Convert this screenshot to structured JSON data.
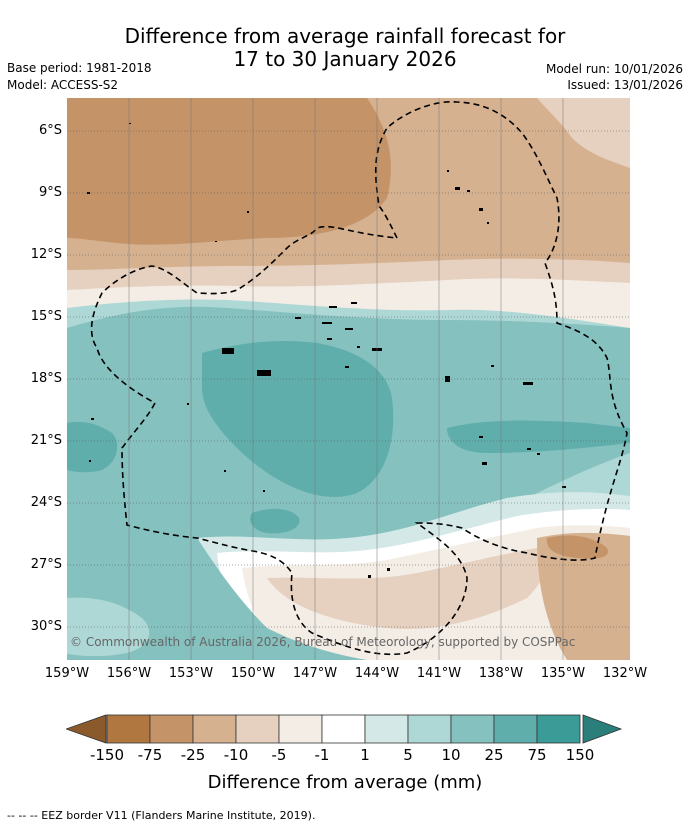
{
  "title": {
    "line1": "Difference from average rainfall forecast for",
    "line2": "17 to 30 January 2026"
  },
  "info": {
    "base_period": "Base period: 1981-2018",
    "model": "Model: ACCESS-S2",
    "model_run": "Model run: 10/01/2026",
    "issued": "Issued: 13/01/2026"
  },
  "map": {
    "lat_labels": [
      "6°S",
      "9°S",
      "12°S",
      "15°S",
      "18°S",
      "21°S",
      "24°S",
      "27°S",
      "30°S"
    ],
    "lon_labels": [
      "159°W",
      "156°W",
      "153°W",
      "150°W",
      "147°W",
      "144°W",
      "141°W",
      "138°W",
      "135°W",
      "132°W"
    ],
    "copyright": "© Commonwealth of Australia 2026, Bureau of Meteorology, supported by COSPPac"
  },
  "colorbar": {
    "title": "Difference from average (mm)",
    "labels": [
      "-150",
      "-75",
      "-25",
      "-10",
      "-5",
      "-1",
      "1",
      "5",
      "10",
      "25",
      "75",
      "150"
    ],
    "colors": [
      "#b07840",
      "#c49468",
      "#d5b190",
      "#e6d0bf",
      "#f3ede5",
      "#ffffff",
      "#d4e9e7",
      "#aed8d6",
      "#85c1bf",
      "#5faeab",
      "#3a9b97"
    ],
    "under_color": "#8a5a2b",
    "over_color": "#2a7f7b"
  },
  "footer": {
    "eez_label": "--  --  -- EEZ border V11 (Flanders Marine Institute, 2019)."
  }
}
